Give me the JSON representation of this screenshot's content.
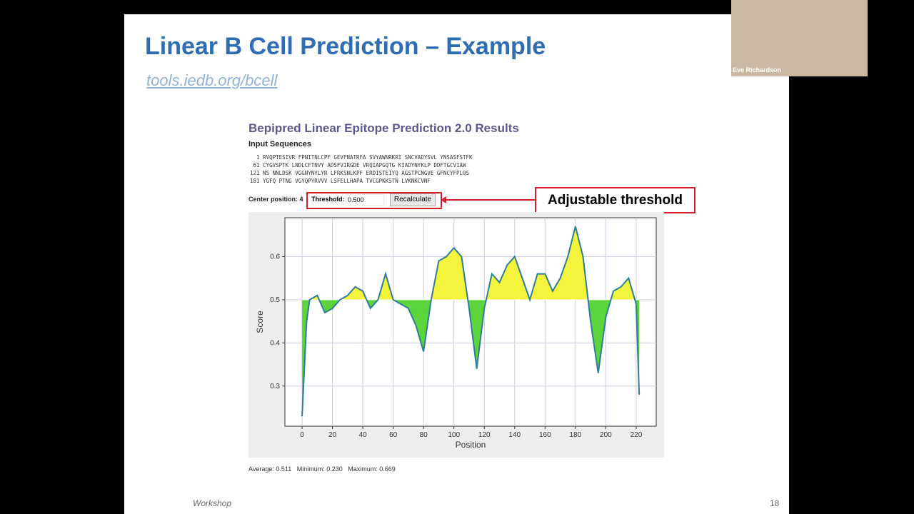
{
  "slide": {
    "title": "Linear B Cell Prediction – Example",
    "link": "tools.iedb.org/bcell",
    "footer": "Workshop",
    "page_number": "18"
  },
  "webcam": {
    "name": "Eve Richardson"
  },
  "results": {
    "heading": "Bepipred Linear Epitope Prediction 2.0 Results",
    "input_label": "Input Sequences",
    "sequences": [
      "  1 RVQPTESIVR FPNITNLCPF GEVFNATRFA SVYAWNRKRI SNCVADYSVL YNSASFSTFK",
      " 61 CYGVSPTK LNDLCFTNVY ADSFVIRGDE VRQIAPGQTG KIADYNYKLP DDFTGCVIAW",
      "121 NS NNLDSK VGGNYNYLYR LFRKSNLKPF ERDISTEIYQ AGSTPCNGVE GFNCYFPLQS",
      "181 YGFQ PTNG VGYQPYRVVV LSFELLHAPA TVCGPKKSTN LVKNKCVNF"
    ],
    "center_label": "Center position: 4",
    "threshold_label": "Threshold:",
    "threshold": {
      "value": 0.5,
      "label": "0.500"
    },
    "button": "Recalculate",
    "annotation": "Adjustable threshold",
    "stats": "Average: 0.511   Minimum: 0.230   Maximum: 0.669"
  },
  "chart_data": {
    "type": "area",
    "xlabel": "Position",
    "ylabel": "Score",
    "x": [
      0,
      3,
      5,
      10,
      15,
      20,
      25,
      30,
      35,
      40,
      45,
      50,
      55,
      60,
      65,
      70,
      75,
      80,
      85,
      90,
      95,
      100,
      105,
      110,
      115,
      120,
      125,
      130,
      135,
      140,
      145,
      150,
      155,
      160,
      165,
      170,
      175,
      180,
      185,
      190,
      195,
      200,
      205,
      210,
      215,
      220,
      222
    ],
    "values": [
      0.23,
      0.45,
      0.5,
      0.51,
      0.47,
      0.48,
      0.5,
      0.51,
      0.53,
      0.52,
      0.48,
      0.5,
      0.56,
      0.5,
      0.49,
      0.48,
      0.44,
      0.38,
      0.5,
      0.59,
      0.6,
      0.62,
      0.6,
      0.48,
      0.34,
      0.48,
      0.56,
      0.54,
      0.58,
      0.6,
      0.55,
      0.5,
      0.56,
      0.56,
      0.52,
      0.55,
      0.6,
      0.67,
      0.6,
      0.45,
      0.33,
      0.46,
      0.52,
      0.53,
      0.55,
      0.49,
      0.28
    ],
    "xlim": [
      -11.3,
      233.2
    ],
    "ylim": [
      0.207,
      0.69
    ],
    "xticks": [
      0,
      20,
      40,
      60,
      80,
      100,
      120,
      140,
      160,
      180,
      200,
      220
    ],
    "yticks": [
      0.3,
      0.4,
      0.5,
      0.6
    ],
    "grid": true,
    "color": "#2e7d9a",
    "above_color": "#f4f43c",
    "below_color": "#5cd43c"
  }
}
